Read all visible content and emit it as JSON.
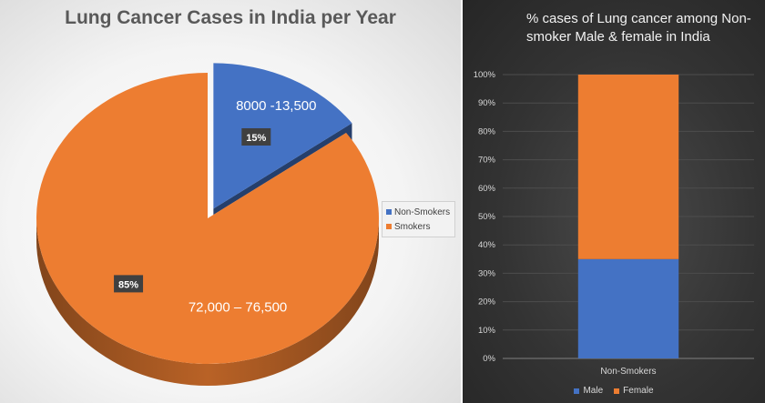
{
  "colors": {
    "blue": "#4472c4",
    "orange": "#ed7d31"
  },
  "chart_data": [
    {
      "type": "pie",
      "title": "Lung Cancer Cases in India per Year",
      "slices": [
        {
          "label": "Non-Smokers",
          "percent": 15,
          "percent_label": "15%",
          "range_label": "8000 -13,500",
          "color": "#4472c4"
        },
        {
          "label": "Smokers",
          "percent": 85,
          "percent_label": "85%",
          "range_label": "72,000 – 76,500",
          "color": "#ed7d31"
        }
      ],
      "legend": [
        "Non-Smokers",
        "Smokers"
      ],
      "legend_position": "right"
    },
    {
      "type": "bar",
      "stacked": true,
      "percent_stacked": true,
      "title": "% cases of Lung cancer among Non-smoker Male & female in India",
      "categories": [
        "Non-Smokers"
      ],
      "series": [
        {
          "name": "Male",
          "values": [
            35
          ],
          "color": "#4472c4"
        },
        {
          "name": "Female",
          "values": [
            65
          ],
          "color": "#ed7d31"
        }
      ],
      "ylim": [
        0,
        100
      ],
      "yticks": [
        "0%",
        "10%",
        "20%",
        "30%",
        "40%",
        "50%",
        "60%",
        "70%",
        "80%",
        "90%",
        "100%"
      ],
      "grid": true,
      "legend_position": "bottom"
    }
  ]
}
